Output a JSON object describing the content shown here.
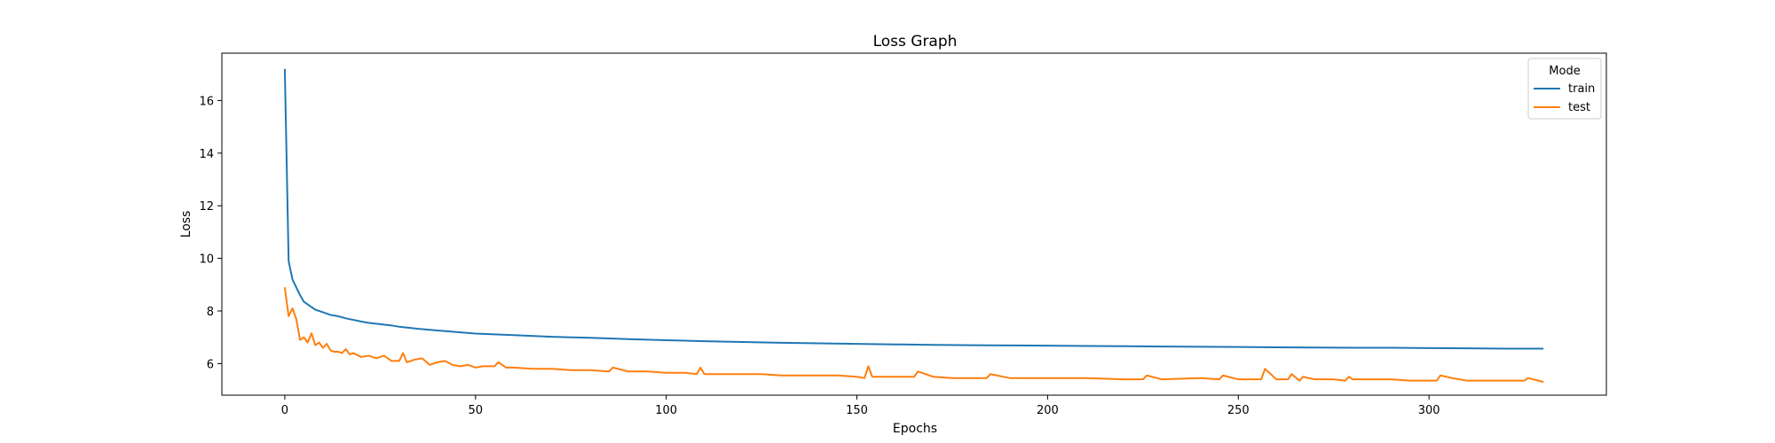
{
  "chart_data": {
    "type": "line",
    "title": "Loss Graph",
    "xlabel": "Epochs",
    "ylabel": "Loss",
    "xlim": [
      -16.5,
      346.5
    ],
    "ylim": [
      4.8,
      17.8
    ],
    "xticks": [
      0,
      50,
      100,
      150,
      200,
      250,
      300
    ],
    "yticks": [
      6,
      8,
      10,
      12,
      14,
      16
    ],
    "grid": false,
    "legend": {
      "title": "Mode",
      "placement": "top-right"
    },
    "series": [
      {
        "name": "train",
        "color": "#1f77b4",
        "x": [
          0,
          1,
          2,
          3,
          4,
          5,
          6,
          7,
          8,
          9,
          10,
          12,
          14,
          16,
          18,
          20,
          22,
          25,
          28,
          30,
          35,
          40,
          45,
          50,
          60,
          70,
          80,
          90,
          100,
          110,
          120,
          130,
          140,
          150,
          160,
          170,
          180,
          190,
          200,
          210,
          220,
          230,
          240,
          250,
          260,
          270,
          280,
          290,
          300,
          310,
          320,
          330
        ],
        "y": [
          17.2,
          9.9,
          9.2,
          8.9,
          8.6,
          8.35,
          8.25,
          8.15,
          8.05,
          8.0,
          7.95,
          7.85,
          7.8,
          7.72,
          7.66,
          7.6,
          7.55,
          7.5,
          7.45,
          7.4,
          7.32,
          7.26,
          7.2,
          7.14,
          7.08,
          7.02,
          6.98,
          6.93,
          6.89,
          6.85,
          6.82,
          6.79,
          6.77,
          6.75,
          6.73,
          6.71,
          6.7,
          6.69,
          6.68,
          6.67,
          6.66,
          6.65,
          6.64,
          6.63,
          6.62,
          6.61,
          6.6,
          6.6,
          6.59,
          6.58,
          6.57,
          6.57
        ]
      },
      {
        "name": "test",
        "color": "#ff7f0e",
        "x": [
          0,
          1,
          2,
          3,
          4,
          5,
          6,
          7,
          8,
          9,
          10,
          11,
          12,
          13,
          14,
          15,
          16,
          17,
          18,
          20,
          22,
          24,
          26,
          28,
          30,
          31,
          32,
          34,
          36,
          38,
          40,
          42,
          44,
          46,
          48,
          50,
          52,
          55,
          56,
          58,
          60,
          65,
          70,
          75,
          80,
          85,
          86,
          90,
          95,
          100,
          105,
          108,
          109,
          110,
          115,
          120,
          125,
          130,
          135,
          140,
          145,
          150,
          152,
          153,
          154,
          160,
          165,
          166,
          170,
          175,
          180,
          184,
          185,
          190,
          200,
          210,
          220,
          225,
          226,
          230,
          240,
          245,
          246,
          250,
          255,
          256,
          257,
          260,
          263,
          264,
          266,
          267,
          270,
          275,
          278,
          279,
          280,
          283,
          285,
          290,
          295,
          302,
          303,
          306,
          310,
          315,
          320,
          325,
          326,
          330
        ],
        "y": [
          8.9,
          7.8,
          8.1,
          7.7,
          6.9,
          7.0,
          6.8,
          7.15,
          6.7,
          6.8,
          6.6,
          6.75,
          6.5,
          6.45,
          6.45,
          6.4,
          6.55,
          6.35,
          6.4,
          6.25,
          6.3,
          6.2,
          6.3,
          6.1,
          6.1,
          6.4,
          6.05,
          6.15,
          6.2,
          5.95,
          6.05,
          6.1,
          5.95,
          5.9,
          5.95,
          5.85,
          5.9,
          5.9,
          6.05,
          5.85,
          5.85,
          5.8,
          5.8,
          5.75,
          5.75,
          5.7,
          5.85,
          5.7,
          5.7,
          5.65,
          5.65,
          5.6,
          5.85,
          5.6,
          5.6,
          5.6,
          5.6,
          5.55,
          5.55,
          5.55,
          5.55,
          5.5,
          5.45,
          5.9,
          5.5,
          5.5,
          5.5,
          5.7,
          5.5,
          5.45,
          5.45,
          5.45,
          5.6,
          5.45,
          5.45,
          5.45,
          5.4,
          5.4,
          5.55,
          5.4,
          5.45,
          5.4,
          5.55,
          5.4,
          5.4,
          5.4,
          5.8,
          5.4,
          5.4,
          5.6,
          5.35,
          5.5,
          5.4,
          5.4,
          5.35,
          5.5,
          5.4,
          5.4,
          5.4,
          5.4,
          5.35,
          5.35,
          5.55,
          5.45,
          5.35,
          5.35,
          5.35,
          5.35,
          5.45,
          5.3
        ]
      }
    ]
  }
}
